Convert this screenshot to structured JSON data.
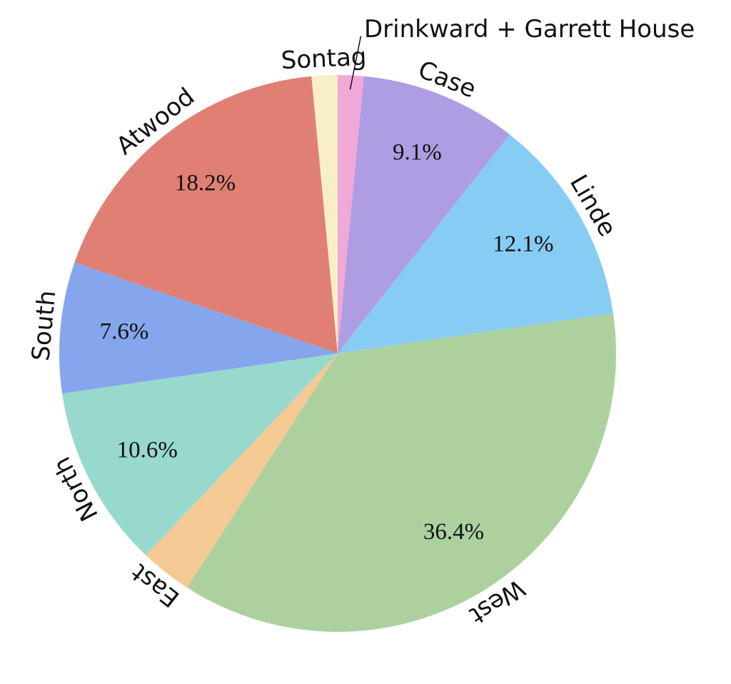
{
  "chart_data": {
    "type": "pie",
    "categories": [
      "Drinkward + Garrett House",
      "Case",
      "Linde",
      "West",
      "East",
      "North",
      "South",
      "Atwood",
      "Sontag"
    ],
    "values": [
      1.5,
      9.1,
      12.1,
      36.4,
      3.0,
      10.6,
      7.6,
      18.2,
      1.5
    ],
    "value_labels": [
      null,
      "9.1%",
      "12.1%",
      "36.4%",
      null,
      "10.6%",
      "7.6%",
      "18.2%",
      null
    ],
    "colors": [
      "#f0a8d8",
      "#ae9de2",
      "#87ccf2",
      "#acd19f",
      "#f5c994",
      "#98d9cd",
      "#85a6ec",
      "#e08075",
      "#f8efc6"
    ]
  }
}
